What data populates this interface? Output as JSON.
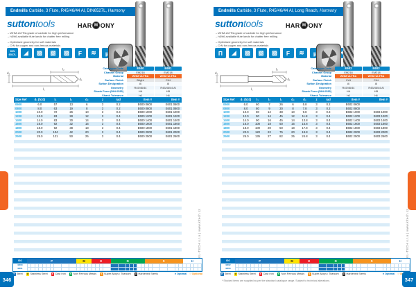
{
  "brand": {
    "sutton": "sutton",
    "tools": "tools",
    "harmony_left": "HAR",
    "harmony_m": "M",
    "harmony_right": "ONY"
  },
  "side_text": "KL-TECH s.r.o | www.kltech.cz",
  "footnote": "* Stocked items are supplied as per the standard catalogue range. Subject to technical alterations.",
  "drawing": {
    "d1": "d₁",
    "d2": "d₂",
    "l1": "l₁",
    "l2": "l₂"
  },
  "spec_labels": [
    "Catalogue Code",
    "Channel Group",
    "Material",
    "Surface Finish",
    "Sutton Designation",
    "Geometry",
    "Shank Form (DIN 6535)",
    "Shank Tolerance"
  ],
  "iso": {
    "corner": "ISO",
    "segments": [
      {
        "label": "P",
        "color": "#1c75bc",
        "text": "#ffffff",
        "cells": 13
      },
      {
        "label": "M",
        "color": "#ffe400",
        "text": "#231f20",
        "cells": 4
      },
      {
        "label": "K",
        "color": "#ed1c24",
        "text": "#ffffff",
        "cells": 5
      },
      {
        "label": "N",
        "color": "#00a651",
        "text": "#ffffff",
        "cells": 9
      },
      {
        "label": "S",
        "color": "#f7941d",
        "text": "#ffffff",
        "cells": 10
      },
      {
        "label": "H",
        "color": "#ffffff",
        "text": "#1c75bc",
        "cells": 5
      }
    ]
  },
  "legend": {
    "items": [
      {
        "letter": "P",
        "color": "#1c75bc",
        "label": "Steel"
      },
      {
        "letter": "M",
        "color": "#ffe400",
        "dark": true,
        "label": "Stainless Steel"
      },
      {
        "letter": "K",
        "color": "#ed1c24",
        "label": "Cast Iron"
      },
      {
        "letter": "N",
        "color": "#00a651",
        "label": "Non Ferrous Metals"
      },
      {
        "letter": "S",
        "color": "#f7941d",
        "label": "Super Alloys / Titanium"
      },
      {
        "letter": "H",
        "color": "#231f20",
        "label": "Hardened Steels"
      }
    ],
    "optimal": "Optimal",
    "optional": "Optional"
  },
  "pages": [
    {
      "number": "346",
      "title_bold": "Endmills",
      "title_rest": " Carbide, 3 Flute, R45/46/44 Al, DIN6527L, ",
      "title_series": "Harmony",
      "bullets": [
        "WHM-ULTRA grade of carbide for high performance",
        "h5/h6 available flute lands for chatter free milling",
        "Optimised geometry for soft materials",
        "CrN for copper and non-ferrous materials"
      ],
      "icons": [
        {
          "name": "din-6527l-icon",
          "glyph": "DIN 6527L",
          "small": true
        },
        {
          "name": "ramp-profile-icon",
          "glyph": "◢"
        },
        {
          "name": "slotting-icon",
          "glyph": "▨"
        },
        {
          "name": "side-milling-icon",
          "glyph": "▧"
        },
        {
          "name": "profiling-icon",
          "glyph": "▨"
        },
        {
          "name": "finishing-icon",
          "glyph": "F"
        },
        {
          "name": "contour-milling-icon",
          "glyph": "≋"
        },
        {
          "name": "micro-grain-icon",
          "glyph": "μ"
        },
        {
          "name": "coolant-spray-icon",
          "glyph": "✦"
        }
      ],
      "spec_values": [
        [
          "E600",
          "E601"
        ],
        [
          "EM218",
          "EM218"
        ],
        [
          "WHM ULTRA",
          "WHM ULTRA"
        ],
        [
          "Bright",
          "CrN"
        ],
        [
          "Al",
          "Al"
        ],
        [
          "R45/46/44",
          "R45/46/44 Al"
        ],
        [
          "HA",
          "HB"
        ],
        [
          "h6",
          "h6"
        ]
      ],
      "table": {
        "item_header": "Item #",
        "columns": [
          "Size Ref",
          "d₁ (h10)",
          "l₁",
          "l₂",
          "d₂",
          "z",
          "rad"
        ],
        "rows": [
          [
            "0600",
            "6.0",
            "57",
            "13",
            "6",
            "3",
            "0.2",
            "E600 0600",
            "E601 0600"
          ],
          [
            "0800",
            "8.0",
            "63",
            "19",
            "8",
            "3",
            "0.2",
            "E600 0800",
            "E601 0800"
          ],
          [
            "1000",
            "10.0",
            "72",
            "26",
            "10",
            "3",
            "0.3",
            "E600 1000",
            "E601 1000"
          ],
          [
            "1200",
            "12.0",
            "83",
            "28",
            "12",
            "3",
            "0.4",
            "E600 1200",
            "E601 1200"
          ],
          [
            "1400",
            "14.0",
            "83",
            "30",
            "14",
            "3",
            "0.4",
            "E600 1400",
            "E601 1400"
          ],
          [
            "1600",
            "16.0",
            "92",
            "32",
            "16",
            "3",
            "0.4",
            "E600 1600",
            "E601 1600"
          ],
          [
            "1800",
            "18.0",
            "92",
            "38",
            "18",
            "3",
            "0.4",
            "E600 1800",
            "E601 1800"
          ],
          [
            "2000",
            "20.0",
            "104",
            "42",
            "20",
            "3",
            "0.4",
            "E600 2000",
            "E601 2000"
          ],
          [
            "2500",
            "25.0",
            "121",
            "50",
            "25",
            "3",
            "0.4",
            "E600 2500",
            "E601 2500"
          ]
        ]
      },
      "iso_rows": [
        {
          "label": "E600",
          "filled": [
            22,
            23,
            24,
            25,
            26,
            27,
            28
          ]
        },
        {
          "label": "E601",
          "filled": [
            22,
            23,
            24,
            25,
            26,
            27,
            28
          ]
        }
      ]
    },
    {
      "number": "347",
      "title_bold": "Endmills",
      "title_rest": " Carbide, 3 Flute, R45/46/44 Al, Long Reach, ",
      "title_series": "Harmony",
      "bullets": [
        "WHM-ULTRA grade of carbide for high performance",
        "h5/h6 available flute lands for chatter free milling",
        "Optimised geometry for soft materials",
        "CrN for copper and non-ferrous materials"
      ],
      "icons": [
        {
          "name": "long-reach-icon",
          "glyph": "Π"
        },
        {
          "name": "ramp-profile-icon",
          "glyph": "◢"
        },
        {
          "name": "slotting-icon",
          "glyph": "▨"
        },
        {
          "name": "side-milling-icon",
          "glyph": "▧"
        },
        {
          "name": "profiling-icon",
          "glyph": "▨"
        },
        {
          "name": "finishing-icon",
          "glyph": "F"
        },
        {
          "name": "contour-milling-icon",
          "glyph": "≋"
        },
        {
          "name": "micro-grain-icon",
          "glyph": "μ"
        },
        {
          "name": "plunge-icon",
          "glyph": "▼"
        },
        {
          "name": "coolant-spray-icon",
          "glyph": "✦"
        }
      ],
      "spec_values": [
        [
          "E602",
          "E603"
        ],
        [
          "EM218",
          "EM218"
        ],
        [
          "WHM ULTRA",
          "WHM ULTRA"
        ],
        [
          "CrN",
          "CrN"
        ],
        [
          "Al",
          "Al"
        ],
        [
          "R45/46/44",
          "R45/46/44 Al"
        ],
        [
          "HA",
          "HB"
        ],
        [
          "h6",
          "h6"
        ]
      ],
      "table": {
        "item_header": "Item #",
        "columns": [
          "Size Ref",
          "d₁ (h10)",
          "l₁",
          "l₂",
          "l₃",
          "d₂",
          "d₃",
          "z",
          "rad"
        ],
        "rows": [
          [
            "0600",
            "6.0",
            "60",
            "7",
            "26",
            "6",
            "5.8",
            "3",
            "0.2",
            "E602 0600",
            ""
          ],
          [
            "0800",
            "8.0",
            "80",
            "9",
            "30",
            "8",
            "7.8",
            "3",
            "0.2",
            "E602 0800",
            ""
          ],
          [
            "1000",
            "10.0",
            "80",
            "12",
            "38",
            "10",
            "9.8",
            "3",
            "0.3",
            "E602 1000",
            "E603 1000"
          ],
          [
            "1200",
            "12.0",
            "90",
            "14",
            "45",
            "12",
            "11.8",
            "3",
            "0.4",
            "E602 1200",
            "E603 1200"
          ],
          [
            "1400",
            "14.0",
            "90",
            "16",
            "45",
            "14",
            "13.8",
            "3",
            "0.4",
            "E602 1400",
            "E603 1400"
          ],
          [
            "1600",
            "16.0",
            "100",
            "18",
            "50",
            "16",
            "15.8",
            "3",
            "0.4",
            "E602 1600",
            "E603 1600"
          ],
          [
            "1800",
            "18.0",
            "100",
            "20",
            "50",
            "18",
            "17.8",
            "3",
            "0.4",
            "E602 1800",
            "E603 1800"
          ],
          [
            "2000",
            "20.0",
            "120",
            "22",
            "75",
            "20",
            "19.8",
            "3",
            "0.4",
            "E602 2000",
            "E603 2000"
          ],
          [
            "2500",
            "25.0",
            "135",
            "27",
            "82",
            "25",
            "24.8",
            "3",
            "0.4",
            "E602 2500",
            "E603 2500"
          ]
        ]
      },
      "iso_rows": [
        {
          "label": "E602",
          "filled": [
            22,
            23,
            24,
            25,
            26,
            27,
            28
          ]
        },
        {
          "label": "E603",
          "filled": [
            22,
            23,
            24,
            25,
            26,
            27,
            28
          ]
        }
      ]
    }
  ]
}
